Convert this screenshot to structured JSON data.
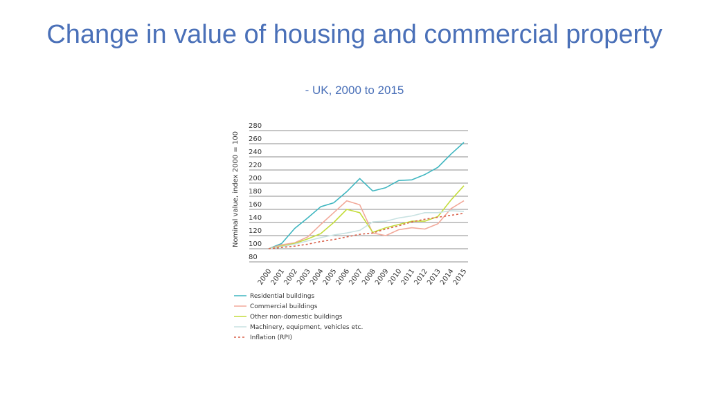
{
  "slide": {
    "title": "Change in value of housing and commercial property",
    "subtitle": "- UK, 2000 to 2015"
  },
  "chart_data": {
    "type": "line",
    "title": "",
    "xlabel": "",
    "ylabel": "Nominal value, index 2000 = 100",
    "x": [
      "2000",
      "2001",
      "2002",
      "2003",
      "2004",
      "2005",
      "2006",
      "2007",
      "2008",
      "2009",
      "2010",
      "2011",
      "2012",
      "2013",
      "2014",
      "2015"
    ],
    "ylim": [
      80,
      280
    ],
    "yticks": [
      80,
      100,
      120,
      140,
      160,
      180,
      200,
      220,
      240,
      260,
      280
    ],
    "grid": true,
    "legend_position": "bottom",
    "series": [
      {
        "name": "Residential buildings",
        "color": "#3fb6c0",
        "dashed": false,
        "values": [
          100,
          108,
          131,
          147,
          164,
          170,
          187,
          207,
          188,
          193,
          204,
          205,
          213,
          224,
          244,
          262
        ]
      },
      {
        "name": "Commercial buildings",
        "color": "#f2a99a",
        "dashed": false,
        "values": [
          100,
          106,
          109,
          118,
          137,
          155,
          173,
          167,
          124,
          120,
          129,
          132,
          130,
          138,
          161,
          173
        ]
      },
      {
        "name": "Other non-domestic buildings",
        "color": "#c4dc3c",
        "dashed": false,
        "values": [
          100,
          104,
          108,
          115,
          123,
          140,
          160,
          155,
          125,
          132,
          137,
          142,
          142,
          149,
          174,
          196
        ]
      },
      {
        "name": "Machinery, equipment, vehicles etc.",
        "color": "#c8e2e2",
        "dashed": false,
        "values": [
          100,
          103,
          107,
          112,
          117,
          121,
          124,
          128,
          141,
          142,
          147,
          150,
          155,
          155,
          158,
          157
        ]
      },
      {
        "name": "Inflation (RPI)",
        "color": "#d9604a",
        "dashed": true,
        "values": [
          100,
          102,
          104,
          107,
          111,
          114,
          118,
          122,
          124,
          130,
          135,
          141,
          145,
          148,
          151,
          154
        ]
      }
    ]
  }
}
